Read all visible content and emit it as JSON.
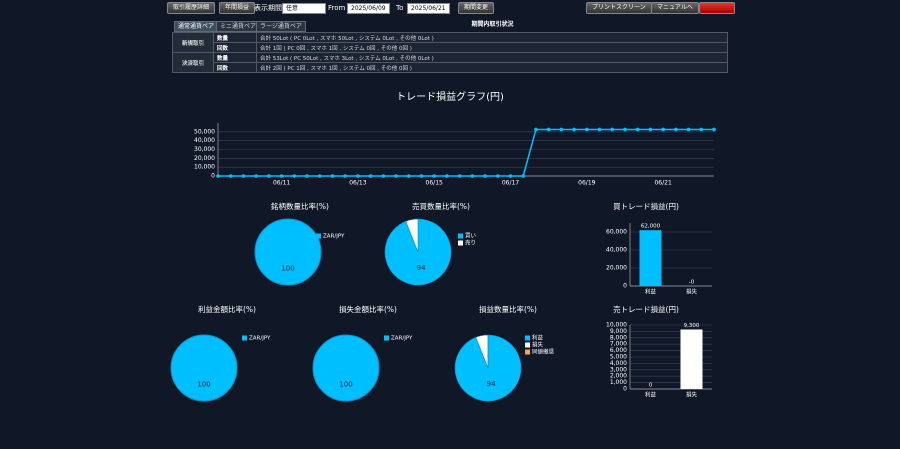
{
  "toolbar": {
    "buttons_left": [
      "取引履歴詳細",
      "年間損益"
    ],
    "period_label": "表示期間",
    "period_select": "任意",
    "from_label": "From",
    "from_date": "2025/06/09",
    "to_label": "To",
    "to_date": "2025/06/21",
    "change_button": "期間変更",
    "buttons_right": [
      "プリントスクリーン",
      "マニュアルへ"
    ]
  },
  "table": {
    "tabs": [
      "通常通貨ペア",
      "ミニ通貨ペア",
      "ラージ通貨ペア"
    ],
    "header": "期間内取引状況",
    "groups": [
      {
        "label": "新規取引",
        "rows": [
          [
            "数量",
            "合計 50Lot ( PC 0Lot , スマホ 50Lot , システム 0Lot , その他 0Lot )"
          ],
          [
            "回数",
            "合計 1回 ( PC 0回 , スマホ 1回 , システム 0回 , その他 0回 )"
          ]
        ]
      },
      {
        "label": "決済取引",
        "rows": [
          [
            "数量",
            "合計 53Lot ( PC 50Lot , スマホ 3Lot , システム 0Lot , その他 0Lot )"
          ],
          [
            "回数",
            "合計 2回 ( PC 1回 , スマホ 1回 , システム 0回 , その他 0回 )"
          ]
        ]
      }
    ]
  },
  "chart_data": [
    {
      "type": "line",
      "title": "トレード損益グラフ(円)",
      "color": "#00bfff",
      "grid": true,
      "categories": [
        null,
        null,
        null,
        null,
        null,
        "06/11",
        null,
        null,
        null,
        null,
        null,
        "06/13",
        null,
        null,
        null,
        null,
        null,
        "06/15",
        null,
        null,
        null,
        null,
        null,
        "06/17",
        null,
        null,
        null,
        null,
        null,
        "06/19",
        null,
        null,
        null,
        null,
        null,
        "06/21",
        null,
        null,
        null,
        null
      ],
      "values": [
        0,
        0,
        0,
        0,
        0,
        0,
        0,
        0,
        0,
        0,
        0,
        0,
        0,
        0,
        0,
        0,
        0,
        0,
        0,
        0,
        0,
        0,
        0,
        0,
        0,
        52700,
        52700,
        52700,
        52700,
        52700,
        52700,
        52700,
        52700,
        52700,
        52700,
        52700,
        52700,
        52700,
        52700,
        52700
      ],
      "ylim": [
        0,
        60000
      ],
      "yticks": [
        0,
        {
          "value": 10000,
          "label": "10,000"
        },
        {
          "value": 20000,
          "label": "20,000"
        },
        {
          "value": 30000,
          "label": "30,000"
        },
        {
          "value": 40000,
          "label": "40,000"
        },
        {
          "value": 50000,
          "label": "50,000"
        }
      ]
    },
    {
      "type": "pie",
      "title": "銘柄数量比率(%)",
      "categories": [
        "ZAR/JPY"
      ],
      "values": [
        100
      ],
      "colors": [
        "#00bfff"
      ]
    },
    {
      "type": "pie",
      "title": "売買数量比率(%)",
      "categories": [
        "買い",
        "売り"
      ],
      "values": [
        94,
        6
      ],
      "colors": [
        "#00bfff",
        "#ffffff"
      ]
    },
    {
      "type": "bar",
      "title": "買トレード損益(円)",
      "categories": [
        "利益",
        "損失"
      ],
      "values": [
        62000,
        0
      ],
      "value_labels": [
        "62,000",
        "-0"
      ],
      "color": "#00bfff",
      "grid": true,
      "ylim": [
        0,
        70000
      ],
      "yticks": [
        0,
        {
          "value": 20000,
          "label": "20,000"
        },
        {
          "value": 40000,
          "label": "40,000"
        },
        {
          "value": 60000,
          "label": "60,000"
        }
      ]
    },
    {
      "type": "pie",
      "title": "利益金額比率(%)",
      "categories": [
        "ZAR/JPY"
      ],
      "values": [
        100
      ],
      "colors": [
        "#00bfff"
      ]
    },
    {
      "type": "pie",
      "title": "損失金額比率(%)",
      "categories": [
        "ZAR/JPY"
      ],
      "values": [
        100
      ],
      "colors": [
        "#00bfff"
      ]
    },
    {
      "type": "pie",
      "title": "損益数量比率(%)",
      "categories": [
        "利益",
        "損失",
        "同値撤退"
      ],
      "values": [
        94,
        6,
        0
      ],
      "colors": [
        "#00bfff",
        "#ffffff",
        "#f4a460"
      ]
    },
    {
      "type": "bar",
      "title": "売トレード損益(円)",
      "categories": [
        "利益",
        "損失"
      ],
      "values": [
        0,
        9300
      ],
      "value_labels": [
        "0",
        "9,300"
      ],
      "color": "#ffffff",
      "grid": true,
      "ylim": [
        0,
        10000
      ],
      "yticks": [
        0,
        {
          "value": 1000,
          "label": "1,000"
        },
        {
          "value": 2000,
          "label": "2,000"
        },
        {
          "value": 3000,
          "label": "3,000"
        },
        {
          "value": 4000,
          "label": "4,000"
        },
        {
          "value": 5000,
          "label": "5,000"
        },
        {
          "value": 6000,
          "label": "6,000"
        },
        {
          "value": 7000,
          "label": "7,000"
        },
        {
          "value": 8000,
          "label": "8,000"
        },
        {
          "value": 9000,
          "label": "9,000"
        },
        {
          "value": 10000,
          "label": "10,000"
        }
      ]
    }
  ]
}
